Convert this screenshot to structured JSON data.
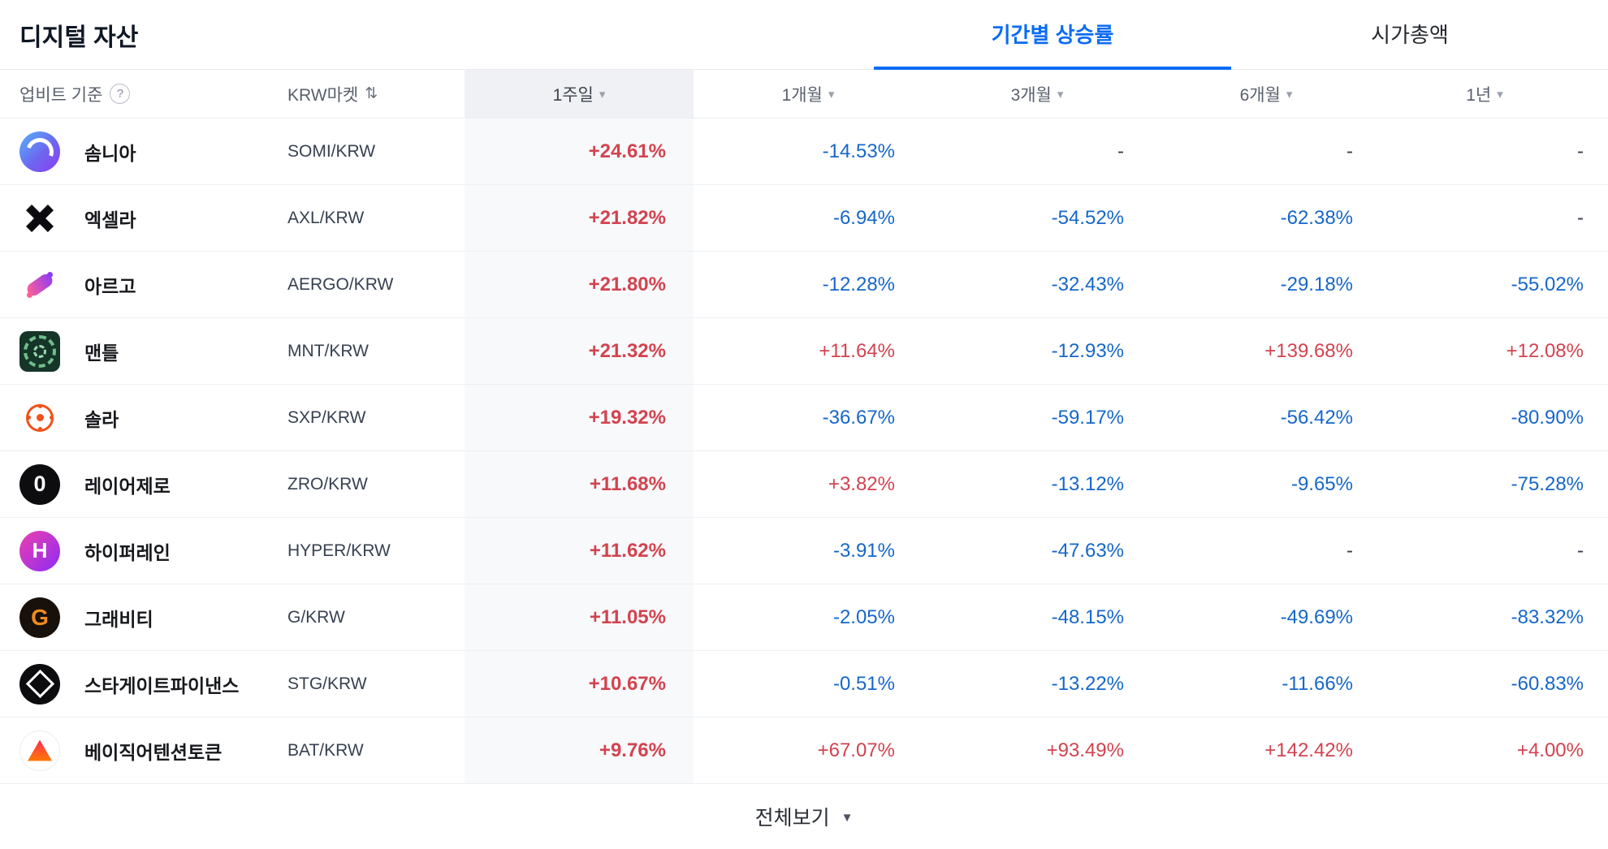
{
  "page": {
    "title": "디지털 자산",
    "tabs": [
      {
        "label": "기간별 상승률",
        "state": "active"
      },
      {
        "label": "시가총액",
        "state": "inactive"
      }
    ],
    "footer": {
      "view_all_label": "전체보기"
    }
  },
  "icons": {
    "help_glyph": "?",
    "sort_glyph": "▾",
    "swap_glyph": "⇅",
    "chevron_glyph": "▼"
  },
  "colors": {
    "up": "#d2434f",
    "down": "#1667c9",
    "accent": "#0a6cf5",
    "flat": "#333d4b"
  },
  "table": {
    "header": {
      "basis_label": "업비트 기준",
      "market_label": "KRW마켓",
      "periods": [
        "1주일",
        "1개월",
        "3개월",
        "6개월",
        "1년"
      ],
      "sorted_period": "1주일"
    },
    "rows": [
      {
        "name": "솜니아",
        "pair": "SOMI/KRW",
        "icon": "somnia-icon",
        "icon_glyph": "",
        "values": [
          {
            "text": "+24.61%",
            "dir": "up"
          },
          {
            "text": "-14.53%",
            "dir": "down"
          },
          {
            "text": "-",
            "dir": "flat"
          },
          {
            "text": "-",
            "dir": "flat"
          },
          {
            "text": "-",
            "dir": "flat"
          }
        ]
      },
      {
        "name": "엑셀라",
        "pair": "AXL/KRW",
        "icon": "axelar-icon",
        "icon_glyph": "",
        "values": [
          {
            "text": "+21.82%",
            "dir": "up"
          },
          {
            "text": "-6.94%",
            "dir": "down"
          },
          {
            "text": "-54.52%",
            "dir": "down"
          },
          {
            "text": "-62.38%",
            "dir": "down"
          },
          {
            "text": "-",
            "dir": "flat"
          }
        ]
      },
      {
        "name": "아르고",
        "pair": "AERGO/KRW",
        "icon": "aergo-icon",
        "icon_glyph": "",
        "values": [
          {
            "text": "+21.80%",
            "dir": "up"
          },
          {
            "text": "-12.28%",
            "dir": "down"
          },
          {
            "text": "-32.43%",
            "dir": "down"
          },
          {
            "text": "-29.18%",
            "dir": "down"
          },
          {
            "text": "-55.02%",
            "dir": "down"
          }
        ]
      },
      {
        "name": "맨틀",
        "pair": "MNT/KRW",
        "icon": "mantle-icon",
        "icon_glyph": "",
        "values": [
          {
            "text": "+21.32%",
            "dir": "up"
          },
          {
            "text": "+11.64%",
            "dir": "up"
          },
          {
            "text": "-12.93%",
            "dir": "down"
          },
          {
            "text": "+139.68%",
            "dir": "up"
          },
          {
            "text": "+12.08%",
            "dir": "up"
          }
        ]
      },
      {
        "name": "솔라",
        "pair": "SXP/KRW",
        "icon": "solar-icon",
        "icon_glyph": "",
        "values": [
          {
            "text": "+19.32%",
            "dir": "up"
          },
          {
            "text": "-36.67%",
            "dir": "down"
          },
          {
            "text": "-59.17%",
            "dir": "down"
          },
          {
            "text": "-56.42%",
            "dir": "down"
          },
          {
            "text": "-80.90%",
            "dir": "down"
          }
        ]
      },
      {
        "name": "레이어제로",
        "pair": "ZRO/KRW",
        "icon": "layerzero-icon",
        "icon_glyph": "0",
        "values": [
          {
            "text": "+11.68%",
            "dir": "up"
          },
          {
            "text": "+3.82%",
            "dir": "up"
          },
          {
            "text": "-13.12%",
            "dir": "down"
          },
          {
            "text": "-9.65%",
            "dir": "down"
          },
          {
            "text": "-75.28%",
            "dir": "down"
          }
        ]
      },
      {
        "name": "하이퍼레인",
        "pair": "HYPER/KRW",
        "icon": "hyperlane-icon",
        "icon_glyph": "H",
        "values": [
          {
            "text": "+11.62%",
            "dir": "up"
          },
          {
            "text": "-3.91%",
            "dir": "down"
          },
          {
            "text": "-47.63%",
            "dir": "down"
          },
          {
            "text": "-",
            "dir": "flat"
          },
          {
            "text": "-",
            "dir": "flat"
          }
        ]
      },
      {
        "name": "그래비티",
        "pair": "G/KRW",
        "icon": "gravity-icon",
        "icon_glyph": "G",
        "values": [
          {
            "text": "+11.05%",
            "dir": "up"
          },
          {
            "text": "-2.05%",
            "dir": "down"
          },
          {
            "text": "-48.15%",
            "dir": "down"
          },
          {
            "text": "-49.69%",
            "dir": "down"
          },
          {
            "text": "-83.32%",
            "dir": "down"
          }
        ]
      },
      {
        "name": "스타게이트파이낸스",
        "pair": "STG/KRW",
        "icon": "stargate-icon",
        "icon_glyph": "",
        "values": [
          {
            "text": "+10.67%",
            "dir": "up"
          },
          {
            "text": "-0.51%",
            "dir": "down"
          },
          {
            "text": "-13.22%",
            "dir": "down"
          },
          {
            "text": "-11.66%",
            "dir": "down"
          },
          {
            "text": "-60.83%",
            "dir": "down"
          }
        ]
      },
      {
        "name": "베이직어텐션토큰",
        "pair": "BAT/KRW",
        "icon": "bat-icon",
        "icon_glyph": "",
        "values": [
          {
            "text": "+9.76%",
            "dir": "up"
          },
          {
            "text": "+67.07%",
            "dir": "up"
          },
          {
            "text": "+93.49%",
            "dir": "up"
          },
          {
            "text": "+142.42%",
            "dir": "up"
          },
          {
            "text": "+4.00%",
            "dir": "up"
          }
        ]
      }
    ]
  }
}
